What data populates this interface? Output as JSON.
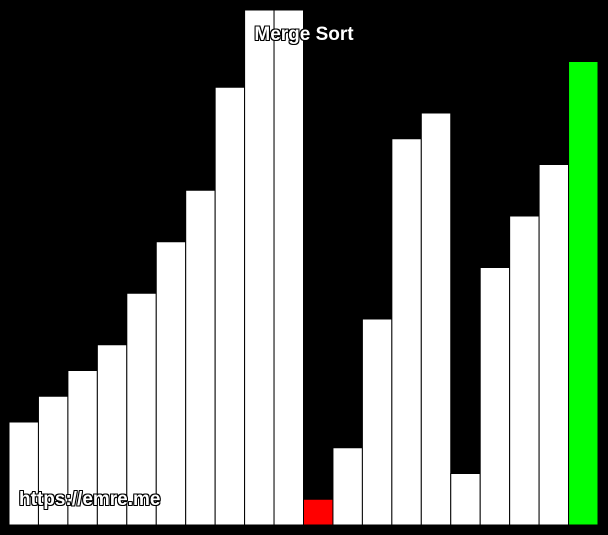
{
  "title": "Merge Sort",
  "watermark": "https://emre.me",
  "colors": {
    "background": "#000000",
    "bar_default": "#ffffff",
    "bar_border": "#000000",
    "bar_compare": "#ff0000",
    "bar_write": "#00ff00"
  },
  "chart_data": {
    "type": "bar",
    "value_max": 20,
    "values": [
      4,
      5,
      6,
      7,
      9,
      11,
      13,
      17,
      20,
      20,
      1,
      3,
      8,
      15,
      16,
      2,
      10,
      12,
      14,
      18
    ],
    "states": [
      "default",
      "default",
      "default",
      "default",
      "default",
      "default",
      "default",
      "default",
      "default",
      "default",
      "compare",
      "default",
      "default",
      "default",
      "default",
      "default",
      "default",
      "default",
      "default",
      "write"
    ]
  }
}
